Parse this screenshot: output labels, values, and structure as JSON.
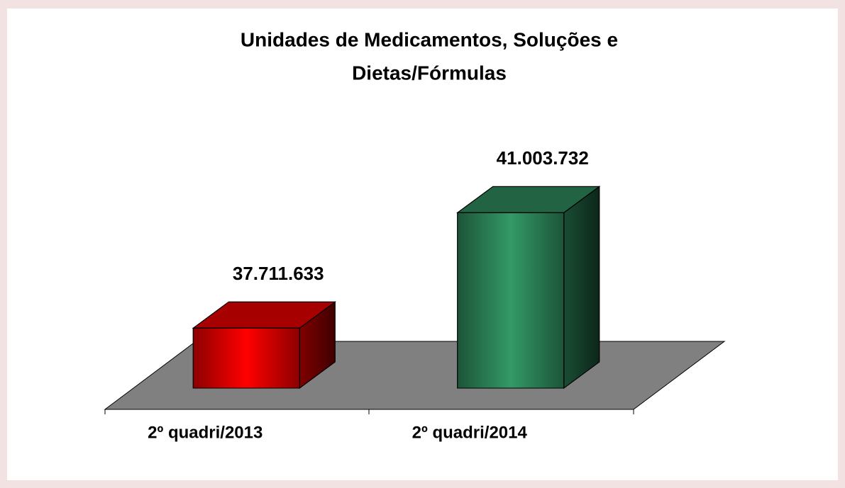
{
  "chart_data": {
    "type": "bar",
    "title": [
      "Unidades de Medicamentos, Soluções e",
      "Dietas/Fórmulas"
    ],
    "categories": [
      "2º quadri/2013",
      "2º quadri/2014"
    ],
    "values": [
      37711633,
      41003732
    ],
    "value_labels": [
      "37.711.633",
      "41.003.732"
    ],
    "colors": [
      "#ff0000",
      "#339966"
    ],
    "ylim": [
      36000000,
      42000000
    ]
  }
}
